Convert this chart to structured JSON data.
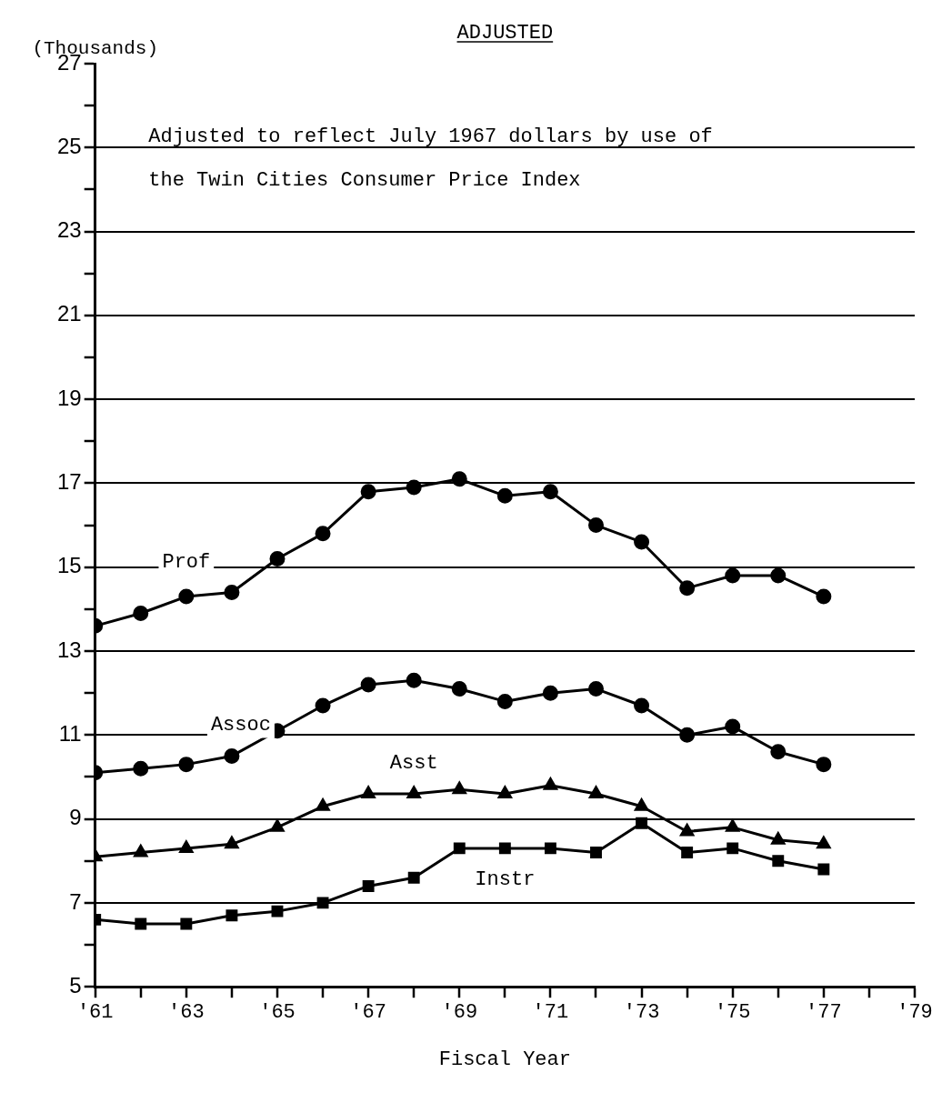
{
  "chart_data": {
    "type": "line",
    "title": "ADJUSTED",
    "xlabel": "Fiscal Year",
    "ylabel": "(Thousands)",
    "annotations": [
      "Adjusted to reflect July 1967 dollars by use of the Twin Cities Consumer Price Index"
    ],
    "x": [
      1961,
      1962,
      1963,
      1964,
      1965,
      1966,
      1967,
      1968,
      1969,
      1970,
      1971,
      1972,
      1973,
      1974,
      1975,
      1976,
      1977
    ],
    "series": [
      {
        "name": "Prof",
        "color": "#000000",
        "marker": "circle",
        "values": [
          13.6,
          13.9,
          14.3,
          14.4,
          15.2,
          15.8,
          16.8,
          16.9,
          17.1,
          16.7,
          16.8,
          16.0,
          15.6,
          14.5,
          14.8,
          14.8,
          14.3
        ]
      },
      {
        "name": "Assoc",
        "color": "#000000",
        "marker": "circle",
        "values": [
          10.1,
          10.2,
          10.3,
          10.5,
          11.1,
          11.7,
          12.2,
          12.3,
          12.1,
          11.8,
          12.0,
          12.1,
          11.7,
          11.0,
          11.2,
          10.6,
          10.3
        ]
      },
      {
        "name": "Asst",
        "color": "#000000",
        "marker": "triangle",
        "values": [
          8.1,
          8.2,
          8.3,
          8.4,
          8.8,
          9.3,
          9.6,
          9.6,
          9.7,
          9.6,
          9.8,
          9.6,
          9.3,
          8.7,
          8.8,
          8.5,
          8.4
        ]
      },
      {
        "name": "Instr",
        "color": "#000000",
        "marker": "square",
        "values": [
          6.6,
          6.5,
          6.5,
          6.7,
          6.8,
          7.0,
          7.4,
          7.6,
          8.3,
          8.3,
          8.3,
          8.2,
          8.9,
          8.2,
          8.3,
          8.0,
          7.8
        ]
      }
    ],
    "xlim": [
      1961,
      1979
    ],
    "xticks": [
      {
        "value": 1961,
        "label": "'61"
      },
      {
        "value": 1962,
        "label": null
      },
      {
        "value": 1963,
        "label": "'63"
      },
      {
        "value": 1964,
        "label": null
      },
      {
        "value": 1965,
        "label": "'65"
      },
      {
        "value": 1966,
        "label": null
      },
      {
        "value": 1967,
        "label": "'67"
      },
      {
        "value": 1968,
        "label": null
      },
      {
        "value": 1969,
        "label": "'69"
      },
      {
        "value": 1970,
        "label": null
      },
      {
        "value": 1971,
        "label": "'71"
      },
      {
        "value": 1972,
        "label": null
      },
      {
        "value": 1973,
        "label": "'73"
      },
      {
        "value": 1974,
        "label": null
      },
      {
        "value": 1975,
        "label": "'75"
      },
      {
        "value": 1976,
        "label": null
      },
      {
        "value": 1977,
        "label": "'77"
      },
      {
        "value": 1978,
        "label": null
      },
      {
        "value": 1979,
        "label": "'79"
      }
    ],
    "ylim": [
      5,
      27
    ],
    "yticks": [
      5,
      {
        "value": 6,
        "label": null
      },
      7,
      {
        "value": 8,
        "label": null
      },
      9,
      {
        "value": 10,
        "label": null
      },
      11,
      {
        "value": 12,
        "label": null
      },
      13,
      {
        "value": 14,
        "label": null
      },
      15,
      {
        "value": 16,
        "label": null
      },
      17,
      {
        "value": 18,
        "label": null
      },
      19,
      {
        "value": 20,
        "label": null
      },
      21,
      {
        "value": 22,
        "label": null
      },
      23,
      {
        "value": 24,
        "label": null
      },
      25,
      {
        "value": 26,
        "label": null
      },
      27
    ],
    "grid": "y",
    "legend": false,
    "line_style": "solid"
  }
}
